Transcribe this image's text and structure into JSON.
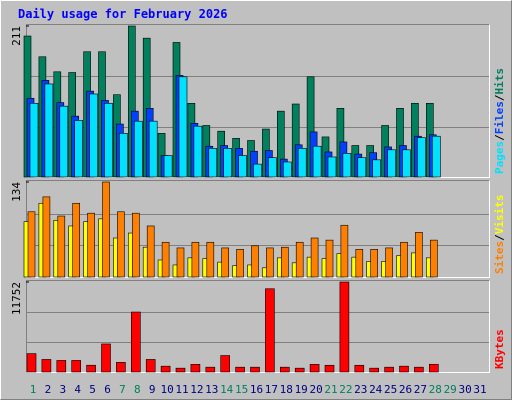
{
  "chart_data": [
    {
      "type": "bar",
      "title": "Daily usage for February 2026",
      "ylim": [
        0,
        211
      ],
      "yticks": [
        211
      ],
      "legend_separator": "/",
      "series": [
        {
          "name": "Hits",
          "color": "#00805c",
          "values": [
            197,
            168,
            147,
            146,
            175,
            175,
            115,
            211,
            194,
            61,
            188,
            103,
            72,
            64,
            54,
            51,
            67,
            92,
            102,
            140,
            56,
            96,
            44,
            44,
            72,
            96,
            103,
            103,
            null,
            null,
            null
          ]
        },
        {
          "name": "Files",
          "color": "#0040ff",
          "values": [
            110,
            135,
            104,
            85,
            120,
            107,
            74,
            92,
            96,
            30,
            142,
            75,
            43,
            44,
            40,
            36,
            37,
            25,
            45,
            63,
            35,
            49,
            32,
            34,
            42,
            44,
            57,
            59,
            null,
            null,
            null
          ]
        },
        {
          "name": "Pages",
          "color": "#00e0ff",
          "values": [
            103,
            130,
            99,
            79,
            116,
            103,
            61,
            78,
            78,
            30,
            140,
            71,
            40,
            40,
            30,
            18,
            27,
            21,
            40,
            43,
            28,
            33,
            27,
            24,
            38,
            38,
            55,
            57,
            null,
            null,
            null
          ]
        }
      ]
    },
    {
      "type": "bar",
      "ylim": [
        0,
        134
      ],
      "yticks": [
        134
      ],
      "legend_separator": "/",
      "series": [
        {
          "name": "Visits",
          "color": "#ffff00",
          "values": [
            78,
            104,
            80,
            72,
            78,
            82,
            55,
            62,
            42,
            24,
            17,
            27,
            26,
            21,
            16,
            17,
            13,
            27,
            20,
            28,
            26,
            33,
            28,
            22,
            22,
            30,
            34,
            27,
            null,
            null,
            null
          ]
        },
        {
          "name": "Sites",
          "color": "#ff8000",
          "values": [
            92,
            113,
            86,
            104,
            90,
            134,
            92,
            90,
            72,
            49,
            41,
            49,
            49,
            41,
            39,
            44,
            41,
            42,
            49,
            55,
            52,
            73,
            39,
            39,
            41,
            49,
            63,
            52,
            null,
            null,
            null
          ]
        }
      ]
    },
    {
      "type": "bar",
      "ylim": [
        0,
        11752
      ],
      "yticks": [
        11752
      ],
      "categories": [
        "1",
        "2",
        "3",
        "4",
        "5",
        "6",
        "7",
        "8",
        "9",
        "10",
        "11",
        "12",
        "13",
        "14",
        "15",
        "16",
        "17",
        "18",
        "19",
        "20",
        "21",
        "22",
        "23",
        "24",
        "25",
        "26",
        "27",
        "28",
        "29",
        "30",
        "31"
      ],
      "category_colors": [
        "#00805c",
        "#000080",
        "#000080",
        "#000080",
        "#000080",
        "#000080",
        "#00805c",
        "#00805c",
        "#000080",
        "#000080",
        "#000080",
        "#000080",
        "#000080",
        "#00805c",
        "#00805c",
        "#000080",
        "#000080",
        "#000080",
        "#000080",
        "#000080",
        "#00805c",
        "#00805c",
        "#000080",
        "#000080",
        "#000080",
        "#000080",
        "#000080",
        "#00805c",
        "#00805c",
        "#000080",
        "#000080"
      ],
      "series": [
        {
          "name": "KBytes",
          "color": "#ff0000",
          "values": [
            2400,
            1640,
            1510,
            1510,
            885,
            3660,
            1260,
            7830,
            1640,
            760,
            500,
            1000,
            630,
            2150,
            630,
            630,
            10870,
            630,
            500,
            1000,
            880,
            11752,
            880,
            500,
            630,
            760,
            630,
            1010,
            null,
            null,
            null
          ]
        }
      ]
    }
  ]
}
